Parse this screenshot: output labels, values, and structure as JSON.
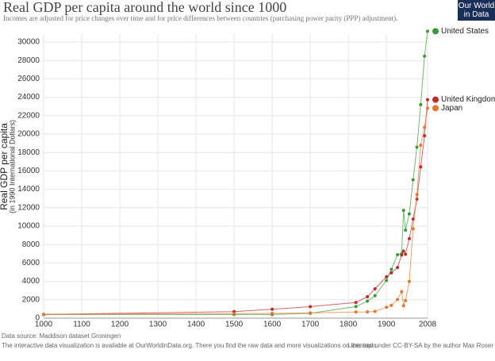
{
  "logo": "Our World in Data",
  "chart_data": {
    "type": "line",
    "title": "Real GDP per capita around the world since 1000",
    "subtitle": "Incomes are adjusted for price changes over time and for price differences between countries (purchasing power parity (PPP) adjustment).",
    "y_label": "Real GDP per capita",
    "y_sublabel": "(in 1990 International Dollars)",
    "x": [
      1000,
      1500,
      1600,
      1700,
      1820,
      1850,
      1870,
      1900,
      1913,
      1929,
      1940,
      1945,
      1950,
      1960,
      1970,
      1980,
      1990,
      2000,
      2008
    ],
    "series": [
      {
        "name": "United States",
        "color": "#3a9a3a",
        "values": [
          400,
          400,
          400,
          527,
          1257,
          1849,
          2445,
          4091,
          5301,
          6899,
          7010,
          11709,
          9561,
          11328,
          15030,
          18577,
          23201,
          28467,
          31178
        ]
      },
      {
        "name": "United Kingdom",
        "color": "#c0282e",
        "values": [
          400,
          714,
          974,
          1250,
          1706,
          2330,
          3190,
          4492,
          4921,
          5503,
          6856,
          7282,
          6939,
          8645,
          10767,
          12931,
          16430,
          19817,
          23742
        ]
      },
      {
        "name": "Japan",
        "color": "#e8772e",
        "values": [
          425,
          500,
          520,
          570,
          669,
          681,
          737,
          1180,
          1387,
          2026,
          2874,
          1346,
          1921,
          3986,
          9714,
          13428,
          18789,
          20738,
          22816
        ]
      }
    ],
    "xlim": [
      1000,
      2008
    ],
    "xticks": [
      1000,
      1100,
      1200,
      1300,
      1400,
      1500,
      1600,
      1700,
      1800,
      1900,
      2008
    ],
    "ylim": [
      0,
      30000
    ],
    "yticks": [
      0,
      2000,
      4000,
      6000,
      8000,
      10000,
      12000,
      14000,
      16000,
      18000,
      20000,
      22000,
      24000,
      26000,
      28000,
      30000
    ],
    "grid": true,
    "source": "Data source: Maddison dataset Groningen",
    "note": "The interactive data visualization is available at OurWorldinData.org. There you find the raw data and more visualizations on this topic.",
    "license": "Licensed under CC-BY-SA by the author Max Roser"
  }
}
